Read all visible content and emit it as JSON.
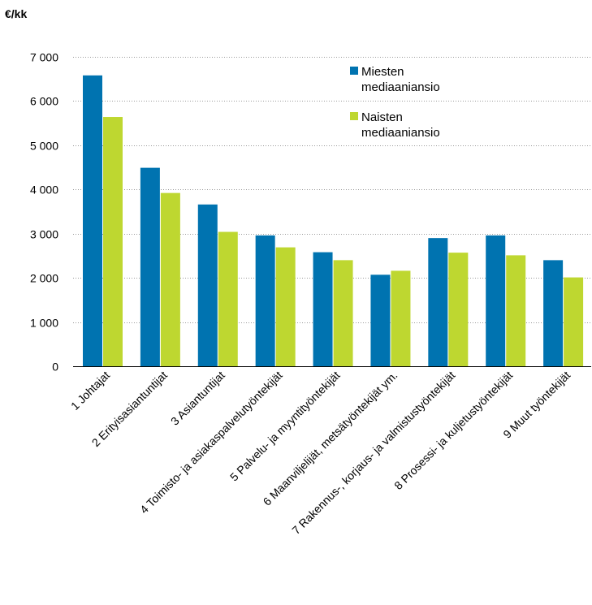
{
  "chart_data": {
    "type": "bar",
    "unit_label": "€/kk",
    "title": "",
    "xlabel": "",
    "ylabel": "",
    "ylim": [
      0,
      7000
    ],
    "yticks": [
      0,
      1000,
      2000,
      3000,
      4000,
      5000,
      6000,
      7000
    ],
    "ytick_labels": [
      "0",
      "1 000",
      "2 000",
      "3 000",
      "4 000",
      "5 000",
      "6 000",
      "7 000"
    ],
    "grid": "horizontal-dotted",
    "legend_position": "top-right",
    "categories": [
      "1 Johtajat",
      "2 Erityisasiantuntijat",
      "3 Asiantuntijat",
      "4 Toimisto- ja asiakaspalvelutyöntekijät",
      "5 Palvelu- ja myyntityöntekijät",
      "6 Maanviljelijät, metsätyöntekijät ym.",
      "7 Rakennus-, korjaus- ja valmistustyöntekijät",
      "8 Prosessi- ja kuljetustyöntekijät",
      "9 Muut työntekijät"
    ],
    "series": [
      {
        "name_lines": [
          "Miesten",
          "mediaaniansio"
        ],
        "color": "#0073B0",
        "values": [
          6580,
          4490,
          3660,
          2960,
          2580,
          2070,
          2900,
          2960,
          2400
        ]
      },
      {
        "name_lines": [
          "Naisten",
          "mediaaniansio"
        ],
        "color": "#BED730",
        "values": [
          5640,
          3920,
          3040,
          2690,
          2400,
          2160,
          2570,
          2510,
          2010
        ]
      }
    ]
  }
}
